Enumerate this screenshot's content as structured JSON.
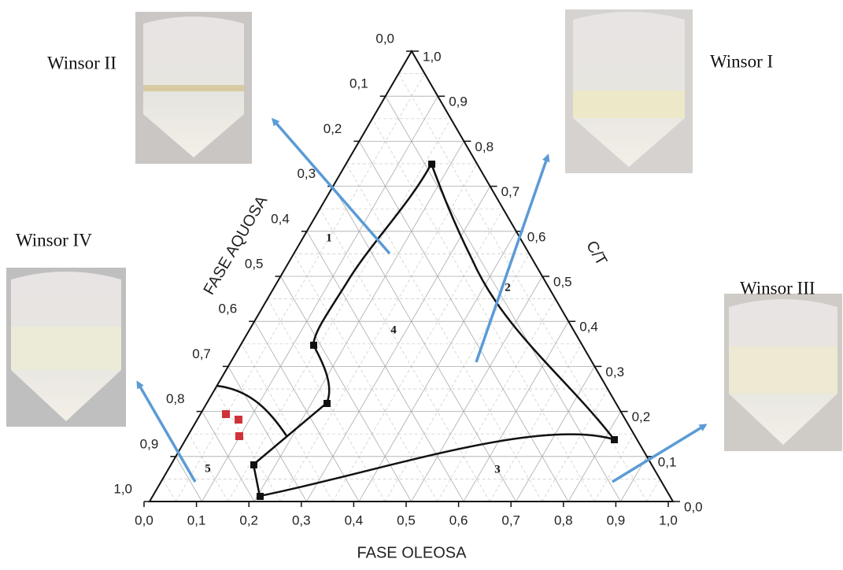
{
  "captions": [
    "Winsor II",
    "Winsor I",
    "Winsor IV",
    "Winsor III"
  ],
  "axes": {
    "bottom": {
      "title": "FASE OLEOSA",
      "ticks": [
        "0,0",
        "0,1",
        "0,2",
        "0,3",
        "0,4",
        "0,5",
        "0,6",
        "0,7",
        "0,8",
        "0,9",
        "1,0"
      ]
    },
    "left": {
      "title": "FASE AQUOSA",
      "ticks": [
        "0,0",
        "0,1",
        "0,2",
        "0,3",
        "0,4",
        "0,5",
        "0,6",
        "0,7",
        "0,8",
        "0,9",
        "1,0"
      ]
    },
    "right": {
      "title": "C/T",
      "ticks": [
        "1,0",
        "0,9",
        "0,8",
        "0,7",
        "0,6",
        "0,5",
        "0,4",
        "0,3",
        "0,2",
        "0,1",
        "0,0"
      ]
    }
  },
  "regions": [
    "1",
    "2",
    "3",
    "4",
    "5"
  ]
}
